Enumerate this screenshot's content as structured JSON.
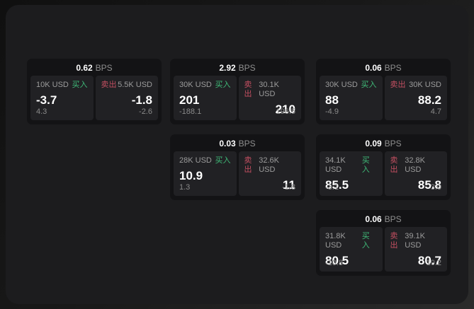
{
  "labels": {
    "bps_unit": "BPS",
    "buy": "买入",
    "sell": "卖出"
  },
  "colors": {
    "buy_accent": "#3fba78",
    "sell_accent": "#c34f61",
    "card_bg": "#131315",
    "panel_bg": "#212124",
    "page_bg": "#1c1c1e"
  },
  "cards": [
    {
      "bps": "0.62",
      "col": 1,
      "row": 1,
      "buy": {
        "notional": "10K USD",
        "value": "-3.7",
        "sub": "4.3"
      },
      "sell": {
        "notional": "5.5K USD",
        "value": "-1.8",
        "sub": "-2.6"
      }
    },
    {
      "bps": "2.92",
      "col": 2,
      "row": 1,
      "buy": {
        "notional": "30K USD",
        "value": "201",
        "sub": "-188.1"
      },
      "sell": {
        "notional": "30.1K USD",
        "value": "210",
        "sub": "196.5"
      }
    },
    {
      "bps": "0.06",
      "col": 3,
      "row": 1,
      "buy": {
        "notional": "30K USD",
        "value": "88",
        "sub": "-4.9"
      },
      "sell": {
        "notional": "30K USD",
        "value": "88.2",
        "sub": "4.7"
      }
    },
    {
      "bps": "0.03",
      "col": 2,
      "row": 2,
      "buy": {
        "notional": "28K USD",
        "value": "10.9",
        "sub": "1.3"
      },
      "sell": {
        "notional": "32.6K USD",
        "value": "11",
        "sub": "-1.8"
      }
    },
    {
      "bps": "0.09",
      "col": 3,
      "row": 2,
      "buy": {
        "notional": "34.1K USD",
        "value": "85.5",
        "sub": "-3.1"
      },
      "sell": {
        "notional": "32.8K USD",
        "value": "85.8",
        "sub": "3.0"
      }
    },
    {
      "bps": "0.06",
      "col": 3,
      "row": 3,
      "buy": {
        "notional": "31.8K USD",
        "value": "80.5",
        "sub": "-10.8"
      },
      "sell": {
        "notional": "39.1K USD",
        "value": "80.7",
        "sub": "10.2"
      }
    }
  ]
}
